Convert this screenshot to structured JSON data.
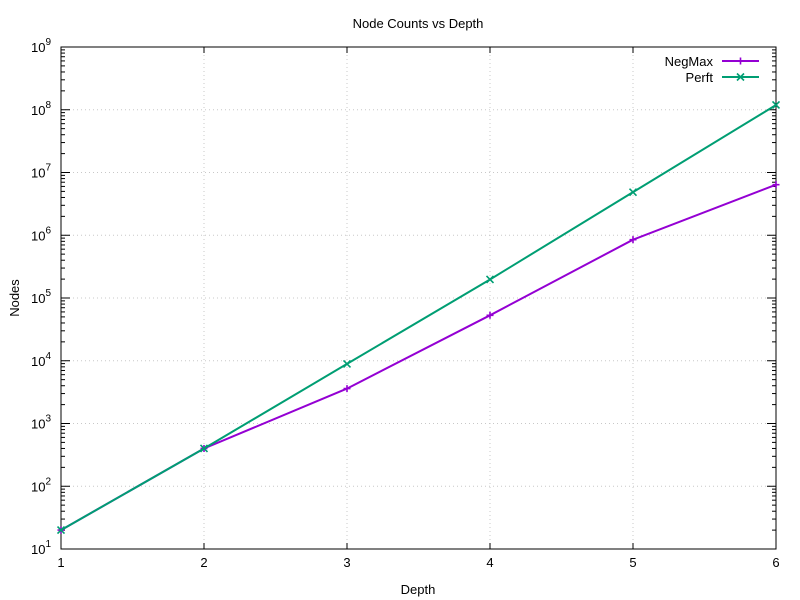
{
  "chart_data": {
    "type": "line",
    "title": "Node Counts vs Depth",
    "xlabel": "Depth",
    "ylabel": "Nodes",
    "x": [
      1,
      2,
      3,
      4,
      5,
      6
    ],
    "xlim": [
      1,
      6
    ],
    "ylim": [
      10,
      1000000000
    ],
    "yscale": "log",
    "grid": true,
    "legend_position": "top-right",
    "x_ticks": [
      "1",
      "2",
      "3",
      "4",
      "5",
      "6"
    ],
    "y_ticks": [
      {
        "value": 10,
        "base": "10",
        "exp": "1"
      },
      {
        "value": 100,
        "base": "10",
        "exp": "2"
      },
      {
        "value": 1000,
        "base": "10",
        "exp": "3"
      },
      {
        "value": 10000,
        "base": "10",
        "exp": "4"
      },
      {
        "value": 100000,
        "base": "10",
        "exp": "5"
      },
      {
        "value": 1000000,
        "base": "10",
        "exp": "6"
      },
      {
        "value": 10000000,
        "base": "10",
        "exp": "7"
      },
      {
        "value": 100000000,
        "base": "10",
        "exp": "8"
      },
      {
        "value": 1000000000,
        "base": "10",
        "exp": "9"
      }
    ],
    "series": [
      {
        "name": "NegMax",
        "color": "#9400d3",
        "marker": "plus",
        "values": [
          20,
          400,
          3600,
          53000,
          850000,
          6400000
        ]
      },
      {
        "name": "Perft",
        "color": "#009e73",
        "marker": "cross",
        "values": [
          20,
          400,
          8902,
          197281,
          4865609,
          119060324
        ]
      }
    ]
  }
}
